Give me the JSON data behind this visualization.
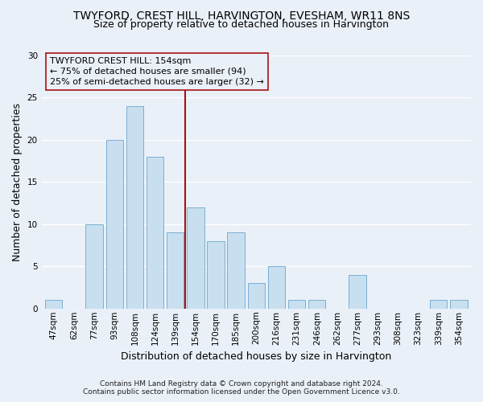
{
  "title": "TWYFORD, CREST HILL, HARVINGTON, EVESHAM, WR11 8NS",
  "subtitle": "Size of property relative to detached houses in Harvington",
  "xlabel": "Distribution of detached houses by size in Harvington",
  "ylabel": "Number of detached properties",
  "bar_labels": [
    "47sqm",
    "62sqm",
    "77sqm",
    "93sqm",
    "108sqm",
    "124sqm",
    "139sqm",
    "154sqm",
    "170sqm",
    "185sqm",
    "200sqm",
    "216sqm",
    "231sqm",
    "246sqm",
    "262sqm",
    "277sqm",
    "293sqm",
    "308sqm",
    "323sqm",
    "339sqm",
    "354sqm"
  ],
  "bar_values": [
    1,
    0,
    10,
    20,
    24,
    18,
    9,
    12,
    8,
    9,
    3,
    5,
    1,
    1,
    0,
    4,
    0,
    0,
    0,
    1,
    1
  ],
  "bar_color": "#c8dff0",
  "bar_edge_color": "#7aafd4",
  "reference_line_index": 7,
  "reference_line_color": "#aa1111",
  "annotation_title": "TWYFORD CREST HILL: 154sqm",
  "annotation_line1": "← 75% of detached houses are smaller (94)",
  "annotation_line2": "25% of semi-detached houses are larger (32) →",
  "annotation_box_edge_color": "#aa1111",
  "ylim": [
    0,
    30
  ],
  "yticks": [
    0,
    5,
    10,
    15,
    20,
    25,
    30
  ],
  "footer_line1": "Contains HM Land Registry data © Crown copyright and database right 2024.",
  "footer_line2": "Contains public sector information licensed under the Open Government Licence v3.0.",
  "background_color": "#eaf0f8",
  "grid_color": "#ffffff",
  "title_fontsize": 10,
  "subtitle_fontsize": 9,
  "axis_label_fontsize": 9,
  "tick_fontsize": 7.5
}
